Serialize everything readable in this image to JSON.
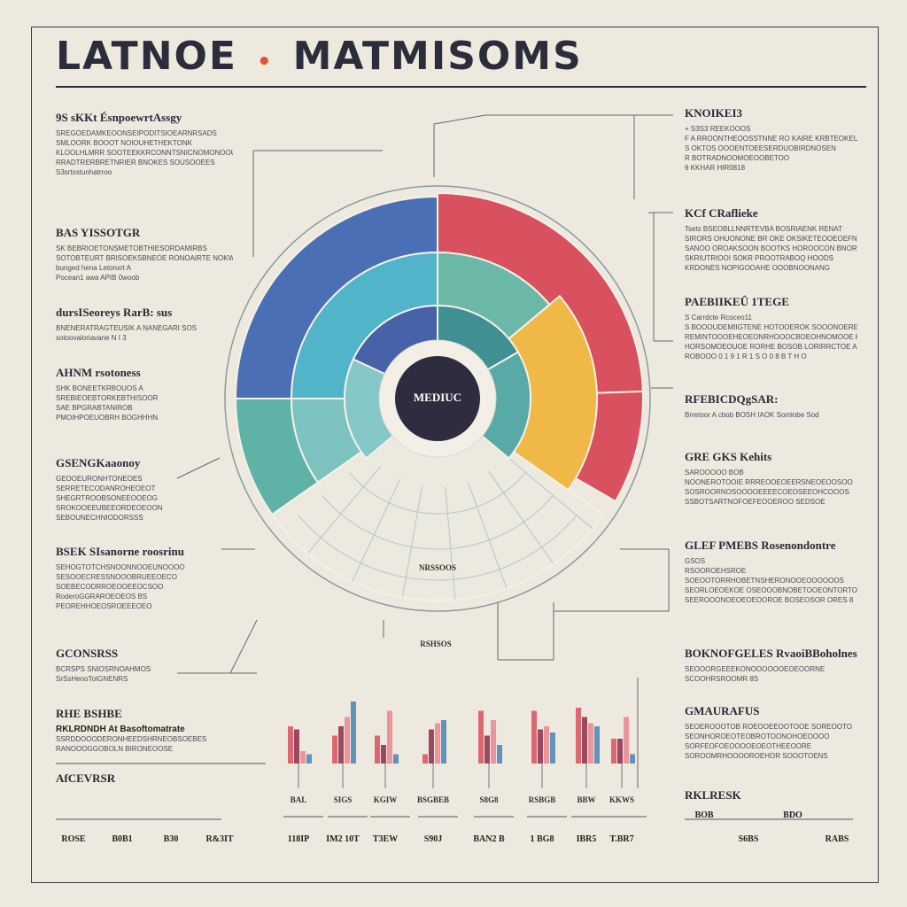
{
  "title": {
    "left": "LATNOE",
    "right": "MATMISOMS"
  },
  "center_label": "MEDIUC",
  "wheel_labels": {
    "bottom": "NRSSOOS",
    "bottom_tag": "RSHSOS"
  },
  "left_blocks": [
    {
      "heading": "9S sKKt ÉsnpoewrtAssgy",
      "lines": [
        "SREGOEDAMKEOONSEIPODITSIOEARNRSADS",
        "SMLOORK BOOOT NOIOUHETHEKTONK",
        "KLOOLHLMRR SOOTEEKKRCONNTSNICNOMONOOUAR",
        "RRADTRERBRETNRIER BNOKES SOUSOOEES",
        "S3srtxstunhatrroo"
      ]
    },
    {
      "heading": "BAS YISSOTGR",
      "lines": [
        "SK BEBRIOETONSMETOBTHIESORDAMIRBS",
        "SOTOBTEURT BRISOEKSBNEOE RONOAIRTE NOKWOKY",
        "bunged hena Letonxrt A",
        "Pocean1 awa APIB 0woob"
      ]
    },
    {
      "heading": "dursISeoreys   RarB: sus",
      "lines": [
        "BNENERATRAGTEUSIK A NANEGARI SOS",
        "sotoovaloriavane N I 3"
      ]
    },
    {
      "heading": "AHNM rsotoness",
      "lines": [
        "SHK BONEETKRBOUOS A",
        "SREBIEOEBTORKEBTHISOOR",
        "SAE BPGRABTANIROB",
        "PMOIHPOEUOBRH BOGHHHN"
      ]
    },
    {
      "heading": "GSENGKaaonoy",
      "lines": [
        "GEOOEURONHTONEOES",
        "SERRETECODANROHEOEOT",
        "SHEGRTROOBSONEEOOEOG",
        "SROKOOEEUBEEORDEOEOON",
        "SEBOUNECHNIODORSSS"
      ]
    },
    {
      "heading": "BSEK SIsanorne roosrinu",
      "lines": [
        "SEHOGTOTCHSNOONNOOEUNOOOO",
        "SESOOECRESSNOOOBRUEEOECO",
        "SOEBECODRROEOOEEOCSOO",
        "RoderoGGRAROEOEOS BS",
        "PEOREHHOEOSROEEEOEO"
      ]
    },
    {
      "heading": "GCONSRSS",
      "lines": [
        "BCRSPS SNIOSRNOAHMOS",
        "SrSsHenoToIGNENRS"
      ]
    }
  ],
  "right_blocks": [
    {
      "heading": "KNOIKEI3",
      "lines": [
        "+ S3S3 REEKOOOS",
        "F A RROONTHEOOSSTNNE RO KAIRE KRBTEOKEUNE",
        "S OKTOS OOOENTOEESERDUOBIRDNOSEN",
        "R BOTRADNOOMOEOOBETOO",
        "9 KKHAR  HIR0818"
      ]
    },
    {
      "heading": "KCf CRaflieke",
      "lines": [
        "Tsets BSEOBLLNNRTEVBA BOSRIAENK RENAT",
        "SIRORS OHUONONE BR OKE OKSIKETEOOEOEFNR",
        "SANOO OROAKSOON BOOTKS HOROOCON BNORE",
        "SKRIUTRIOOI SOKR PROOTRABOQ HOODS",
        "KRDONES NOPIGOOAHE OOOBNOONANG"
      ]
    },
    {
      "heading": "PAEBIIKEÛ 1TEGE",
      "lines": [
        "S Carrdcte Rcoceo11",
        "S BOOOUDEMIIGTENE HOTOOEROK SOOONOEREEC",
        "REMINTOOOEHEOEONRHOOOCBOEOHNOMOOE ROBERE",
        "HORSOMOEOUOE RORHE BOSOB LORIRRCTOE AIBUUE",
        "ROBOOO 0 1 9 1 R 1 S O 0 8 B T H O"
      ]
    },
    {
      "heading": "RFEBICDQgSAR:",
      "lines": [
        "Brretoor  A cbob BOSH IAOK  Somlobe Sod"
      ]
    },
    {
      "heading": "GRE GKS Kehits",
      "lines": [
        "SAROOOOO BOB",
        "NOONEROTOOIE RRREOOEOEERSNEOEOOSOO",
        "SOSROORNOSOOOOEEEECOEOSEEOHCOOOS",
        "SSBOTSARTNOFOEFEOOEROO SEDSOE"
      ]
    },
    {
      "heading": "GLEF PMEBS Rosenondontre",
      "lines": [
        "GSOS",
        "RSOOROEHSROE",
        "SOEOOTORRHOBETNSHERONOOEOOOOOOS",
        "SEORLOEOEKOE OSEOOOBNOBETOOEONTORTOE",
        "SEEROOONOEOEOEOOROE BOSEOSOR ORES 8"
      ]
    },
    {
      "heading": "BOKNOFGELES RvaoiBBoholnes",
      "lines": [
        "SEOOORGEEEKONOOOOOOEOEOORNE",
        "SCOOHRSROOMR 8S"
      ]
    },
    {
      "heading": "GMAURAFUS",
      "lines": [
        "SEOEROOOTOB ROEOOEEOOTOOE SOREOOTO",
        "SEONHOROEOTEOBROTOONOHOEOOOO",
        "SORFEOFOEOOOOEOEOTHEEOORE",
        "SOROOMRHOOOOROEHOR SOOOTOENS"
      ]
    }
  ],
  "bottom_left": {
    "heading1": "RHE BSHBE",
    "subheading1": "RKLRDNDH At Basoftomatrate",
    "lines1": [
      "SSRDDOOODERONHEEDSHRNEOBSOEBES",
      "RANOOOGGOBOLN BIRONEOOSE"
    ],
    "heading2": "AfCEVRSR",
    "row_labels": [
      "ROSE",
      "B0B1",
      "B30",
      "R&3IT"
    ]
  },
  "bottom_right": {
    "heading": "RKLRESK",
    "row_labels": [
      "BOB",
      "S6BS",
      "BDO",
      "RABS"
    ]
  },
  "mini_charts": [
    {
      "top": "BAL",
      "bottom": "118IP",
      "bars": [
        0.6,
        0.55,
        0.2,
        0.15
      ]
    },
    {
      "top": "SIGS",
      "bottom": "IM2 10T",
      "bars": [
        0.45,
        0.6,
        0.75,
        1.0
      ]
    },
    {
      "top": "KGIW",
      "bottom": "T3EW",
      "bars": [
        0.45,
        0.3,
        0.85,
        0.15
      ]
    },
    {
      "top": "BSGBEB",
      "bottom": "S90J",
      "bars": [
        0.15,
        0.55,
        0.65,
        0.7
      ]
    },
    {
      "top": "S8G8",
      "bottom": "BAN2 B",
      "bars": [
        0.85,
        0.45,
        0.7,
        0.3
      ]
    },
    {
      "top": "RSBGB",
      "bottom": "1 BG8",
      "bars": [
        0.85,
        0.55,
        0.6,
        0.5
      ]
    },
    {
      "top": "BBW",
      "bottom": "IBR5",
      "bars": [
        0.9,
        0.75,
        0.65,
        0.6
      ]
    },
    {
      "top": "KKWS",
      "bottom": "T.BR7",
      "bars": [
        0.4,
        0.4,
        0.75,
        0.15
      ]
    }
  ],
  "colors": {
    "blue": "#4a6fb5",
    "red": "#d9505e",
    "teal": "#5fb3a6",
    "cyan": "#52b4c8",
    "yellow": "#f0b846",
    "navy": "#2e2c3e",
    "pale": "#ece9de"
  }
}
